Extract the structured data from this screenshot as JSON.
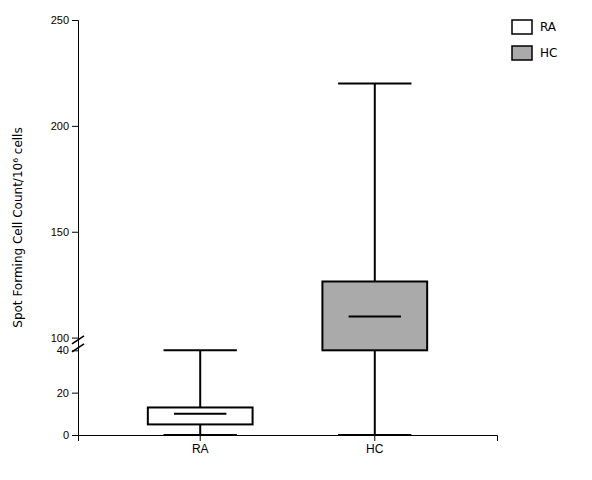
{
  "chart_data": {
    "type": "box",
    "categories": [
      "RA",
      "HC"
    ],
    "q1": [
      5.0,
      40.0
    ],
    "median": [
      10.0,
      110.0
    ],
    "q3": [
      13.0,
      126.5
    ],
    "whisker_low": [
      0.0,
      0.0
    ],
    "whisker_high": [
      40.0,
      220.0
    ],
    "colors": [
      "#ffffff",
      "#aaaaaa"
    ],
    "ylabel": "Spot Forming Cell Count/10⁶ cells",
    "ylim": [
      0,
      250
    ],
    "ybreak": [
      40,
      100
    ],
    "yticks": [
      0,
      20,
      40,
      100,
      150,
      200,
      250
    ],
    "grid": false,
    "legend": "upper right"
  }
}
